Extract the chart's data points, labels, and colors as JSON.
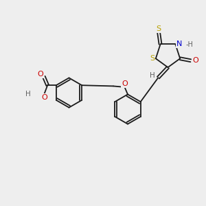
{
  "bg_color": "#eeeeee",
  "bond_color": "#1a1a1a",
  "bond_width": 1.3,
  "atom_colors": {
    "S": "#b8a000",
    "N": "#0000cc",
    "O": "#cc0000",
    "H": "#606060",
    "C": "#1a1a1a"
  },
  "font_size": 7.5,
  "fig_size": [
    3.0,
    3.0
  ],
  "dpi": 100,
  "xlim": [
    0,
    10
  ],
  "ylim": [
    0,
    10
  ]
}
